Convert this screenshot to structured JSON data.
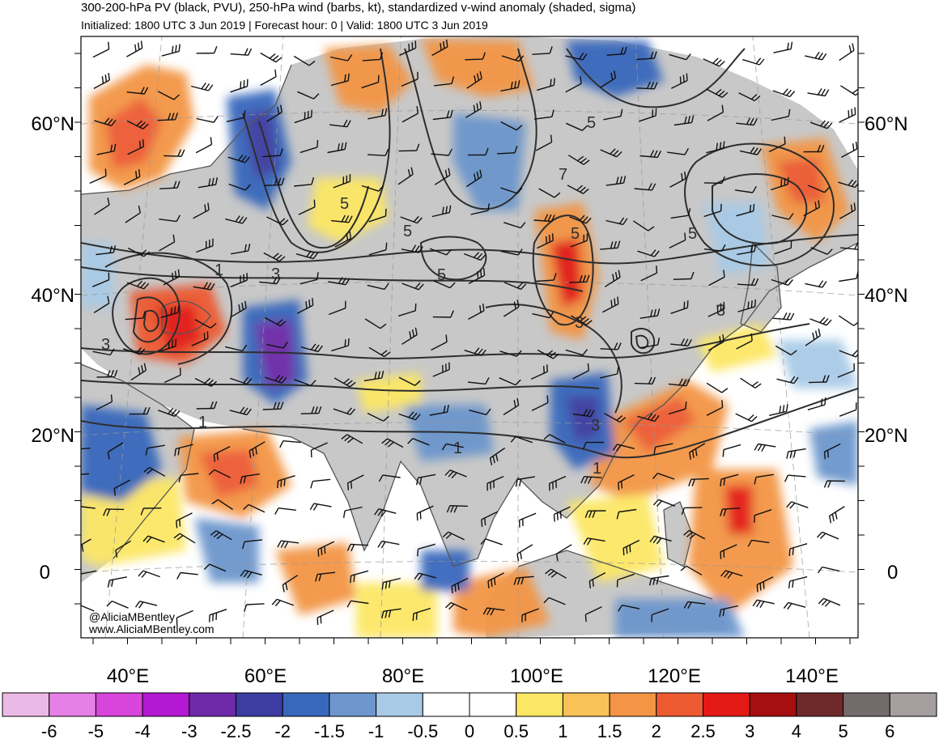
{
  "header": {
    "title": "300-200-hPa PV (black, PVU), 250-hPa wind (barbs, kt), standardized v-wind anomaly (shaded, sigma)",
    "subtitle": "Initialized: 1800 UTC 3 Jun 2019 | Forecast hour: 0 | Valid: 1800 UTC 3 Jun 2019"
  },
  "map": {
    "projection": "lambert-conformal",
    "extent": {
      "lon_min": 30,
      "lon_max": 150,
      "lat_min": -5,
      "lat_max": 70
    },
    "lat_labels": [
      {
        "lat": 60,
        "text": "60°N"
      },
      {
        "lat": 40,
        "text": "40°N"
      },
      {
        "lat": 20,
        "text": "20°N"
      },
      {
        "lat": 0,
        "text": "0"
      }
    ],
    "lon_labels": [
      {
        "lon": 40,
        "text": "40°E"
      },
      {
        "lon": 60,
        "text": "60°E"
      },
      {
        "lon": 80,
        "text": "80°E"
      },
      {
        "lon": 100,
        "text": "100°E"
      },
      {
        "lon": 120,
        "text": "120°E"
      },
      {
        "lon": 140,
        "text": "140°E"
      }
    ],
    "pv_contour_labels": [
      "1",
      "3",
      "5",
      "7"
    ],
    "credit_lines": [
      "@AliciaMBentley",
      "www.AliciaMBentley.com"
    ],
    "colors": {
      "land_gray": "#c8c8c8",
      "pv_contour": "#2e2e2e",
      "coastline": "#555555"
    }
  },
  "colorbar": {
    "labels": [
      "-6",
      "-5",
      "-4",
      "-3",
      "-2.5",
      "-2",
      "-1.5",
      "-1",
      "-0.5",
      "0",
      "0.5",
      "1",
      "1.5",
      "2",
      "2.5",
      "3",
      "4",
      "5",
      "6"
    ],
    "colors": [
      "#ebb9e6",
      "#e67fe6",
      "#d845dc",
      "#b318d2",
      "#6e2aa8",
      "#3c3ca2",
      "#3868bc",
      "#6c96cc",
      "#a8cae6",
      "#ffffff",
      "#ffffff",
      "#fce765",
      "#f8c259",
      "#f39545",
      "#ed5a32",
      "#e31a16",
      "#a50f0f",
      "#6e2a2a",
      "#736b6b",
      "#a59f9f"
    ]
  }
}
